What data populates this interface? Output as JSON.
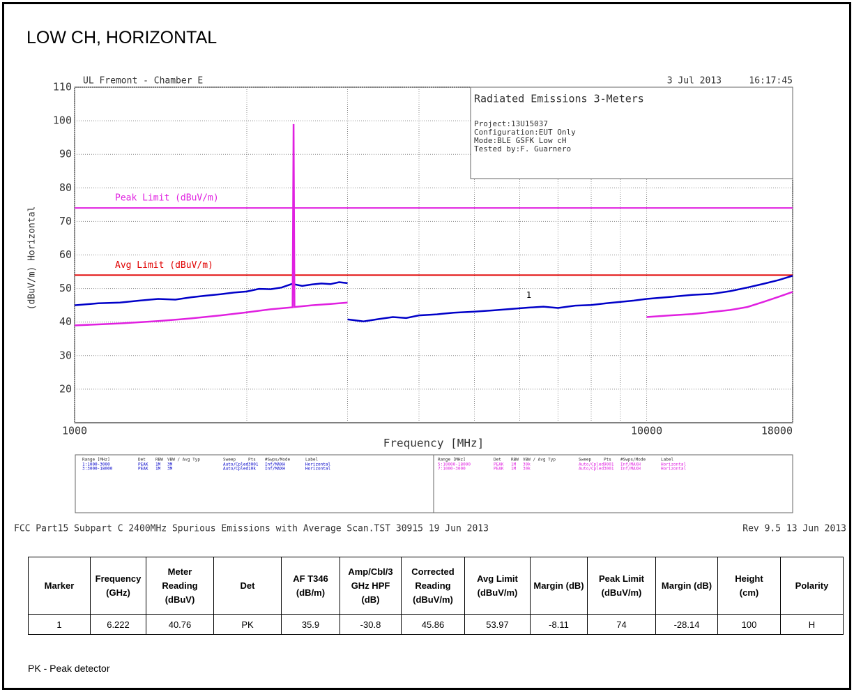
{
  "title": "LOW CH, HORIZONTAL",
  "chart_data": {
    "type": "line",
    "header_left": "UL Fremont - Chamber E",
    "date": "3 Jul 2013",
    "time": "16:17:45",
    "info_title": "Radiated Emissions 3-Meters",
    "info_lines": [
      "Project:13U15037",
      "Configuration:EUT Only",
      "Mode:BLE GSFK Low cH",
      "Tested by:F. Guarnero"
    ],
    "xlabel": "Frequency [MHz]",
    "ylabel": "(dBuV/m) Horizontal",
    "xscale": "log",
    "xlim": [
      1000,
      18000
    ],
    "xticks": [
      1000,
      10000,
      18000
    ],
    "xminor_ticks": [
      2000,
      3000,
      4000,
      5000,
      6000,
      7000,
      8000,
      9000
    ],
    "ylim": [
      10,
      110
    ],
    "yticks": [
      20,
      30,
      40,
      50,
      60,
      70,
      80,
      90,
      100,
      110
    ],
    "grid": true,
    "limits": [
      {
        "name": "Peak Limit (dBuV/m)",
        "value": 74,
        "color": "#e020e0"
      },
      {
        "name": "Avg Limit (dBuV/m)",
        "value": 54,
        "color": "#e00000"
      }
    ],
    "series": [
      {
        "color": "#0000c8",
        "x": [
          1000,
          1100,
          1200,
          1300,
          1400,
          1500,
          1600,
          1700,
          1800,
          1900,
          2000,
          2100,
          2200,
          2300,
          2400,
          2500,
          2600,
          2700,
          2800,
          2900,
          3000
        ],
        "values": [
          45,
          45.6,
          45.8,
          46.4,
          46.9,
          46.7,
          47.4,
          47.9,
          48.3,
          48.8,
          49.1,
          49.9,
          49.8,
          50.3,
          51.4,
          50.8,
          51.2,
          51.5,
          51.3,
          51.9,
          51.6
        ]
      },
      {
        "color": "#0000c8",
        "x": [
          3000,
          3200,
          3400,
          3600,
          3800,
          4000,
          4300,
          4600,
          5000,
          5400,
          5800,
          6200,
          6600,
          7000,
          7500,
          8000,
          8500,
          9000,
          9500,
          10000,
          11000,
          12000,
          13000,
          14000,
          15000,
          16000,
          17000,
          18000
        ],
        "values": [
          40.8,
          40.2,
          40.9,
          41.5,
          41.2,
          42,
          42.3,
          42.8,
          43.1,
          43.5,
          43.9,
          44.3,
          44.6,
          44.2,
          44.9,
          45.1,
          45.6,
          46,
          46.4,
          46.9,
          47.5,
          48.1,
          48.4,
          49.2,
          50.3,
          51.4,
          52.5,
          53.8
        ]
      },
      {
        "color": "#e020e0",
        "x": [
          1000,
          1200,
          1400,
          1600,
          1800,
          2000,
          2200,
          2405,
          2414,
          2423,
          2600,
          2800,
          3000
        ],
        "values": [
          39,
          39.6,
          40.3,
          41.1,
          42,
          42.9,
          43.8,
          44.4,
          99,
          44.5,
          45,
          45.4,
          45.8
        ]
      },
      {
        "color": "#e020e0",
        "x": [
          10000,
          11000,
          12000,
          13000,
          14000,
          15000,
          16000,
          17000,
          18000
        ],
        "values": [
          41.5,
          42,
          42.4,
          43,
          43.6,
          44.5,
          46,
          47.5,
          49
        ]
      }
    ],
    "marker": {
      "label": "1",
      "x": 6222,
      "y": 45.86
    },
    "sweep_left": {
      "header": [
        "Range [MHz]",
        "Det",
        "RBW",
        "VBW / Avg Typ",
        "Sweep",
        "Pts",
        "#Swps/Mode",
        "Label"
      ],
      "rows": [
        [
          "1:1000-3000",
          "PEAK",
          "1M",
          "3M",
          "Auto/Cpled",
          "3001",
          "Inf/MAXH",
          "Horizontal"
        ],
        [
          "3:3000-18000",
          "PEAK",
          "1M",
          "3M",
          "Auto/Cpled",
          "10k",
          "Inf/MAXH",
          "Horizontal"
        ]
      ]
    },
    "sweep_right": {
      "header": [
        "Range [MHz]",
        "Det",
        "RBW",
        "VBW / Avg Typ",
        "Sweep",
        "Pts",
        "#Swps/Mode",
        "Label"
      ],
      "rows": [
        [
          "5:10000-18000",
          "PEAK",
          "1M",
          "30k",
          "Auto/Cpled",
          "9001",
          "Inf/MAXH",
          "Horizontal"
        ],
        [
          "7:1000-3000",
          "PEAK",
          "1M",
          "30k",
          "Auto/Cpled",
          "3001",
          "Inf/MAXH",
          "Horizontal"
        ]
      ]
    },
    "footer_left": "FCC Part15 Subpart C 2400MHz Spurious Emissions with Average Scan.TST 30915 19 Jun 2013",
    "footer_right": "Rev 9.5 13 Jun 2013"
  },
  "table": {
    "headers": [
      [
        "Marker"
      ],
      [
        "Frequency",
        "(GHz)"
      ],
      [
        "Meter",
        "Reading",
        "(dBuV)"
      ],
      [
        "Det"
      ],
      [
        "AF T346",
        "(dB/m)"
      ],
      [
        "Amp/Cbl/3",
        "GHz HPF",
        "(dB)"
      ],
      [
        "Corrected",
        "Reading",
        "(dBuV/m)"
      ],
      [
        "Avg Limit",
        "(dBuV/m)"
      ],
      [
        "Margin (dB)"
      ],
      [
        "Peak Limit",
        "(dBuV/m)"
      ],
      [
        "Margin (dB)"
      ],
      [
        "Height",
        "(cm)"
      ],
      [
        "Polarity"
      ]
    ],
    "rows": [
      [
        "1",
        "6.222",
        "40.76",
        "PK",
        "35.9",
        "-30.8",
        "45.86",
        "53.97",
        "-8.11",
        "74",
        "-28.14",
        "100",
        "H"
      ]
    ]
  },
  "note": "PK - Peak detector"
}
